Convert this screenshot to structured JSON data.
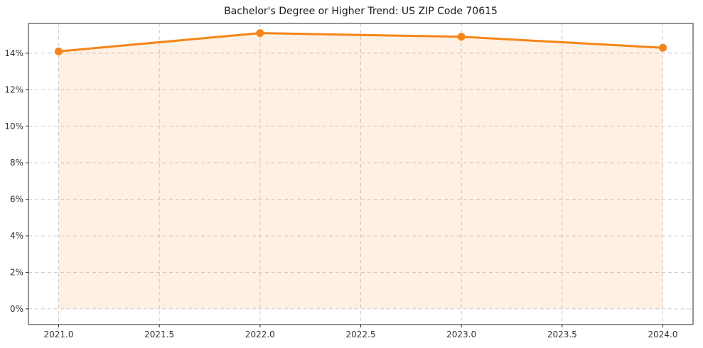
{
  "chart_data": {
    "type": "line",
    "title": "Bachelor's Degree or Higher Trend: US ZIP Code 70615",
    "x": [
      2021,
      2022,
      2023,
      2024
    ],
    "values": [
      14.1,
      15.1,
      14.9,
      14.3
    ],
    "xlabel": "",
    "ylabel": "",
    "xlim": [
      2020.85,
      2024.15
    ],
    "ylim": [
      -0.86,
      15.63
    ],
    "x_ticks": [
      2021.0,
      2021.5,
      2022.0,
      2022.5,
      2023.0,
      2023.5,
      2024.0
    ],
    "x_tick_labels": [
      "2021.0",
      "2021.5",
      "2022.0",
      "2022.5",
      "2023.0",
      "2023.5",
      "2024.0"
    ],
    "y_ticks": [
      0,
      2,
      4,
      6,
      8,
      10,
      12,
      14
    ],
    "y_tick_labels": [
      "0%",
      "2%",
      "4%",
      "6%",
      "8%",
      "10%",
      "12%",
      "14%"
    ],
    "grid": true,
    "grid_style": "dashed",
    "legend": "none",
    "marker": "circle",
    "colors": {
      "line": "#f58518",
      "marker": "#f58518",
      "fill": "#f58518",
      "fill_opacity": 0.12,
      "grid": "#cccccc",
      "border": "#2b2b2b",
      "text": "#333333",
      "background": "#ffffff"
    }
  }
}
